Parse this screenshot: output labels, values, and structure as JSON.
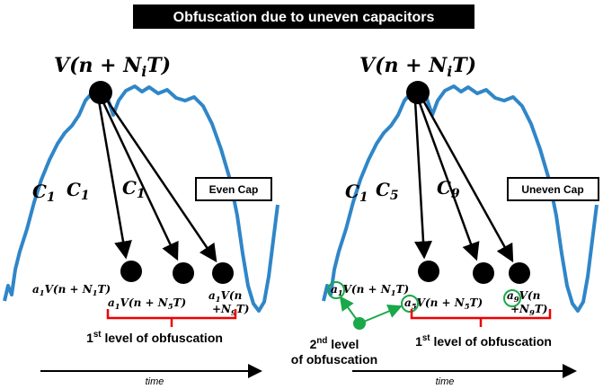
{
  "title": "Obfuscation due to uneven capacitors",
  "panels": [
    {
      "formula": [
        "V(n + N",
        "i",
        "T)"
      ],
      "caps": [
        [
          "C",
          "1"
        ],
        [
          "C",
          "1"
        ],
        [
          "C",
          "1"
        ]
      ],
      "box": "Even Cap",
      "nodes": [
        [
          [
            "a",
            "1",
            "V(n + N",
            "1",
            "T)"
          ]
        ],
        [
          [
            "a",
            "1",
            "V(n + N",
            "5",
            "T)"
          ]
        ],
        [
          [
            "a",
            "1",
            "V(n"
          ],
          [
            "+N",
            "9",
            "T)"
          ]
        ]
      ],
      "bracket_label": [
        "1",
        "st",
        " level of obfuscation"
      ],
      "axis": "time"
    },
    {
      "formula": [
        "V(n + N",
        "i",
        "T)"
      ],
      "caps": [
        [
          "C",
          "1"
        ],
        [
          "C",
          "5"
        ],
        [
          "C",
          "9"
        ]
      ],
      "box": "Uneven Cap",
      "nodes": [
        [
          [
            "a",
            "1",
            "V(n + N",
            "1",
            "T)"
          ]
        ],
        [
          [
            "a",
            "5",
            "V(n + N",
            "5",
            "T)"
          ]
        ],
        [
          [
            "a",
            "9",
            "V(n"
          ],
          [
            "+N",
            "9",
            "T)"
          ]
        ]
      ],
      "bracket_label": [
        "1",
        "st",
        " level of obfuscation"
      ],
      "second_label": [
        [
          "2",
          "nd",
          " level"
        ],
        "of obfuscation"
      ],
      "axis": "time"
    }
  ]
}
